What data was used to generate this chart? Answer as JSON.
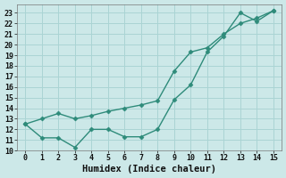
{
  "x": [
    0,
    1,
    2,
    3,
    4,
    5,
    6,
    7,
    8,
    9,
    10,
    11,
    12,
    13,
    14,
    15
  ],
  "series1": [
    12.5,
    13.0,
    13.5,
    13.0,
    13.3,
    13.7,
    14.0,
    14.3,
    14.7,
    17.5,
    19.3,
    19.7,
    21.0,
    22.0,
    22.5,
    23.2
  ],
  "series2": [
    12.5,
    11.2,
    11.2,
    10.3,
    12.0,
    12.0,
    11.3,
    11.3,
    12.0,
    14.8,
    16.2,
    19.3,
    20.8,
    23.0,
    22.2,
    23.2
  ],
  "line_color": "#2e8b7a",
  "bg_color": "#cce8e8",
  "grid_color": "#aad4d4",
  "xlabel": "Humidex (Indice chaleur)",
  "xlim": [
    -0.5,
    15.5
  ],
  "ylim": [
    10.0,
    23.8
  ],
  "yticks": [
    10,
    11,
    12,
    13,
    14,
    15,
    16,
    17,
    18,
    19,
    20,
    21,
    22,
    23
  ],
  "xticks": [
    0,
    1,
    2,
    3,
    4,
    5,
    6,
    7,
    8,
    9,
    10,
    11,
    12,
    13,
    14,
    15
  ],
  "marker": "D",
  "marker_size": 2.5,
  "line_width": 1.0,
  "xlabel_fontsize": 7.5,
  "tick_fontsize": 6.0
}
